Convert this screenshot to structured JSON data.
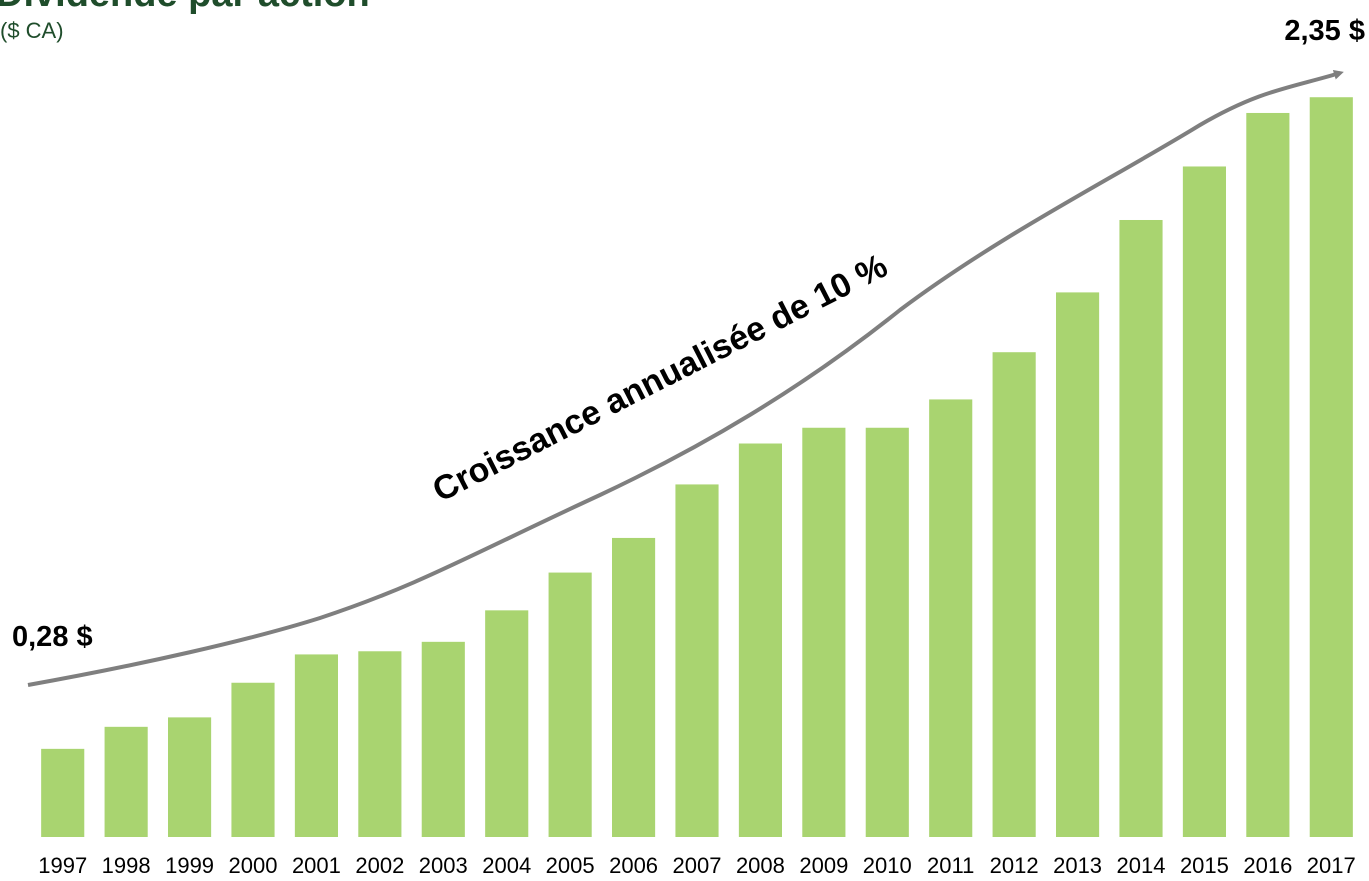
{
  "chart_data": {
    "type": "bar",
    "title": "Dividende par action",
    "subtitle": "($ CA)",
    "annotation": "Croissance annualisée de 10 %",
    "categories": [
      "1997",
      "1998",
      "1999",
      "2000",
      "2001",
      "2002",
      "2003",
      "2004",
      "2005",
      "2006",
      "2007",
      "2008",
      "2009",
      "2010",
      "2011",
      "2012",
      "2013",
      "2014",
      "2015",
      "2016",
      "2017"
    ],
    "values": [
      0.28,
      0.35,
      0.38,
      0.49,
      0.58,
      0.59,
      0.62,
      0.72,
      0.84,
      0.95,
      1.12,
      1.25,
      1.3,
      1.3,
      1.39,
      1.54,
      1.73,
      1.96,
      2.13,
      2.3,
      2.35
    ],
    "value_labels": [
      "0,28 $",
      null,
      null,
      null,
      null,
      null,
      null,
      null,
      null,
      null,
      null,
      null,
      null,
      null,
      null,
      null,
      null,
      null,
      null,
      null,
      "2,35 $"
    ],
    "color": "#a9d470",
    "ylim": [
      0,
      2.5
    ]
  }
}
